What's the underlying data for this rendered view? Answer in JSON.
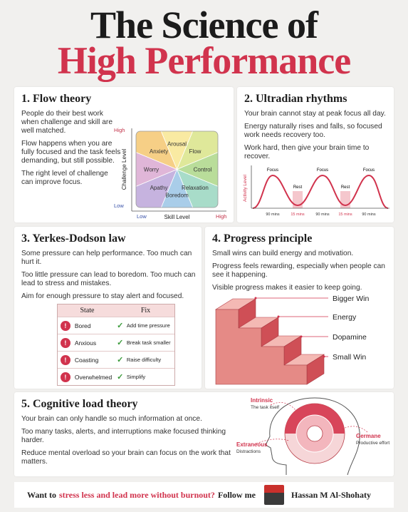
{
  "title": {
    "line1": "The Science of",
    "line2": "High Performance"
  },
  "sections": [
    {
      "heading": "1. Flow theory",
      "paragraphs": [
        "People do their best work when challenge and skill are well matched.",
        "Flow happens when you are fully focused and the task feels demanding, but still possible.",
        "The right level of challenge can improve focus."
      ],
      "diagram": {
        "y_axis_label": "Challenge Level",
        "y_high": "High",
        "y_low": "Low",
        "x_axis_label": "Skill Level",
        "x_low": "Low",
        "x_high": "High",
        "zones": [
          "Anxiety",
          "Arousal",
          "Flow",
          "Control",
          "Relaxation",
          "Boredom",
          "Apathy",
          "Worry"
        ]
      }
    },
    {
      "heading": "2. Ultradian rhythms",
      "paragraphs": [
        "Your brain cannot stay at peak focus all day.",
        "Energy naturally rises and falls, so focused work needs recovery too.",
        "Work hard, then give your brain time to recover."
      ],
      "diagram": {
        "y_axis_label": "Activity Level",
        "peaks": [
          "Focus",
          "Focus",
          "Focus"
        ],
        "dips": [
          "Rest",
          "Rest"
        ],
        "durations": [
          "90 mins",
          "15 mins",
          "90 mins",
          "15 mins",
          "90 mins"
        ]
      }
    },
    {
      "heading": "3. Yerkes-Dodson law",
      "paragraphs": [
        "Some pressure can help performance. Too much can hurt it.",
        "Too little pressure can lead to boredom. Too much can lead to stress and mistakes.",
        "Aim for enough pressure to stay alert and focused."
      ],
      "table": {
        "headers": [
          "State",
          "Fix"
        ],
        "rows": [
          [
            "Bored",
            "Add time pressure"
          ],
          [
            "Anxious",
            "Break task smaller"
          ],
          [
            "Coasting",
            "Raise difficulty"
          ],
          [
            "Overwhelmed",
            "Simplify"
          ]
        ]
      }
    },
    {
      "heading": "4. Progress principle",
      "paragraphs": [
        "Small wins can build energy and motivation.",
        "Progress feels rewarding, especially when people can see it happening.",
        "Visible progress makes it easier to keep going."
      ],
      "diagram": {
        "labels": [
          "Bigger Win",
          "Energy",
          "Dopamine",
          "Small Win"
        ]
      }
    },
    {
      "heading": "5. Cognitive load theory",
      "paragraphs": [
        "Your brain can only handle so much information at once.",
        "Too many tasks, alerts, and interruptions make focused thinking harder.",
        "Reduce mental overload so your brain can focus on the work that matters."
      ],
      "diagram": {
        "labels": [
          {
            "name": "Intrinsic",
            "desc": "The task itself"
          },
          {
            "name": "Extraneous",
            "desc": "Distractions"
          },
          {
            "name": "Germane",
            "desc": "Productive effort"
          }
        ]
      }
    }
  ],
  "footer": {
    "lead": "Want to",
    "highlight": "stress less and lead more without burnout?",
    "cta": "Follow me",
    "author": "Hassan M Al-Shohaty"
  }
}
